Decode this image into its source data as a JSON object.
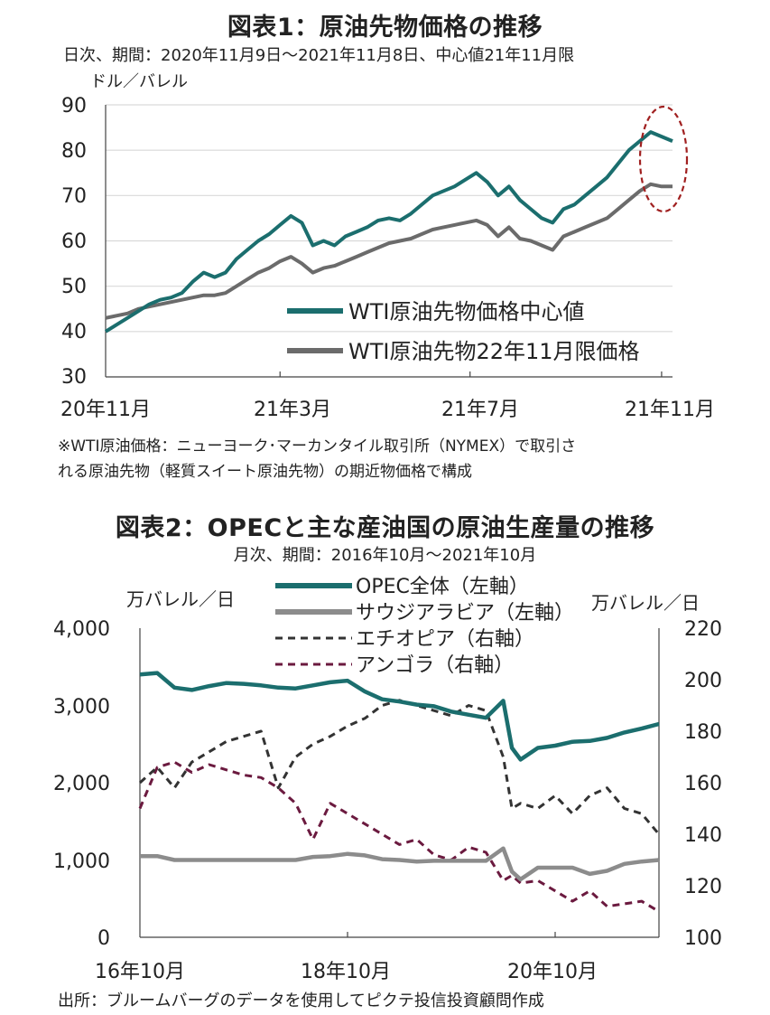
{
  "colors": {
    "teal": "#1b6e6e",
    "gray": "#6b6b6b",
    "lightgray": "#8c8c8c",
    "black": "#333333",
    "maroon": "#6b1a3f",
    "ellipse": "#a02020",
    "grid": "#d9d9d9"
  },
  "charts": [
    {
      "title": "図表1：原油先物価格の推移",
      "subtitle": "日次、期間：2020年11月9日～2021年11月8日、中心値21年11月限",
      "unit": "ドル／バレル",
      "note1": "※WTI原油価格：ニューヨーク･マーカンタイル取引所（NYMEX）で取引さ",
      "note2": "れる原油先物（軽質スイート原油先物）の期近物価格で構成",
      "y_ticks": [
        "90",
        "80",
        "70",
        "60",
        "50",
        "40",
        "30"
      ],
      "x_ticks": [
        "20年11月",
        "21年3月",
        "21年7月",
        "21年11月"
      ]
    },
    {
      "title": "図表2：OPECと主な産油国の原油生産量の推移",
      "subtitle": "月次、期間：2016年10月～2021年10月",
      "unit_left": "万バレル／日",
      "unit_right": "万バレル／日",
      "source": "出所：ブルームバーグのデータを使用してピクテ投信投資顧問作成",
      "y_left_ticks": [
        "4,000",
        "3,000",
        "2,000",
        "1,000",
        "0"
      ],
      "y_right_ticks": [
        "220",
        "200",
        "180",
        "160",
        "140",
        "120",
        "100"
      ],
      "x_ticks": [
        "16年10月",
        "18年10月",
        "20年10月"
      ]
    }
  ],
  "chart_data": [
    {
      "type": "line",
      "title": "図表1：原油先物価格の推移",
      "ylabel": "ドル／バレル",
      "ylim": [
        30,
        90
      ],
      "x_range": [
        "2020-11-09",
        "2021-11-08"
      ],
      "x_ticks": [
        "20年11月",
        "21年3月",
        "21年7月",
        "21年11月"
      ],
      "legend": "bottom-right",
      "grid": true,
      "series": [
        {
          "name": "WTI原油先物価格中心値",
          "dates": [
            "2020-11-09",
            "2020-11-16",
            "2020-11-23",
            "2020-11-30",
            "2020-12-07",
            "2020-12-14",
            "2020-12-21",
            "2020-12-28",
            "2021-01-04",
            "2021-01-11",
            "2021-01-18",
            "2021-01-25",
            "2021-02-01",
            "2021-02-08",
            "2021-02-15",
            "2021-02-22",
            "2021-03-01",
            "2021-03-08",
            "2021-03-15",
            "2021-03-22",
            "2021-03-29",
            "2021-04-05",
            "2021-04-12",
            "2021-04-19",
            "2021-04-26",
            "2021-05-03",
            "2021-05-10",
            "2021-05-17",
            "2021-05-24",
            "2021-05-31",
            "2021-06-07",
            "2021-06-14",
            "2021-06-21",
            "2021-06-28",
            "2021-07-05",
            "2021-07-12",
            "2021-07-19",
            "2021-07-26",
            "2021-08-02",
            "2021-08-09",
            "2021-08-16",
            "2021-08-23",
            "2021-08-30",
            "2021-09-06",
            "2021-09-13",
            "2021-09-20",
            "2021-09-27",
            "2021-10-04",
            "2021-10-11",
            "2021-10-18",
            "2021-10-25",
            "2021-11-01",
            "2021-11-08"
          ],
          "values": [
            40,
            41.5,
            43,
            44.5,
            46,
            47,
            47.5,
            48.5,
            51,
            53,
            52,
            53,
            56,
            58,
            60,
            61.5,
            63.5,
            65.5,
            64,
            59,
            60,
            59,
            61,
            62,
            63,
            64.5,
            65,
            64.5,
            66,
            68,
            70,
            71,
            72,
            73.5,
            75,
            73,
            70,
            72,
            69,
            67,
            65,
            64,
            67,
            68,
            70,
            72,
            74,
            77,
            80,
            82,
            84,
            83,
            82
          ]
        },
        {
          "name": "WTI原油先物22年11月限価格",
          "dates": [
            "2020-11-09",
            "2020-11-16",
            "2020-11-23",
            "2020-11-30",
            "2020-12-07",
            "2020-12-14",
            "2020-12-21",
            "2020-12-28",
            "2021-01-04",
            "2021-01-11",
            "2021-01-18",
            "2021-01-25",
            "2021-02-01",
            "2021-02-08",
            "2021-02-15",
            "2021-02-22",
            "2021-03-01",
            "2021-03-08",
            "2021-03-15",
            "2021-03-22",
            "2021-03-29",
            "2021-04-05",
            "2021-04-12",
            "2021-04-19",
            "2021-04-26",
            "2021-05-03",
            "2021-05-10",
            "2021-05-17",
            "2021-05-24",
            "2021-05-31",
            "2021-06-07",
            "2021-06-14",
            "2021-06-21",
            "2021-06-28",
            "2021-07-05",
            "2021-07-12",
            "2021-07-19",
            "2021-07-26",
            "2021-08-02",
            "2021-08-09",
            "2021-08-16",
            "2021-08-23",
            "2021-08-30",
            "2021-09-06",
            "2021-09-13",
            "2021-09-20",
            "2021-09-27",
            "2021-10-04",
            "2021-10-11",
            "2021-10-18",
            "2021-10-25",
            "2021-11-01",
            "2021-11-08"
          ],
          "values": [
            43,
            43.5,
            44,
            45,
            45.5,
            46,
            46.5,
            47,
            47.5,
            48,
            48,
            48.5,
            50,
            51.5,
            53,
            54,
            55.5,
            56.5,
            55,
            53,
            54,
            54.5,
            55.5,
            56.5,
            57.5,
            58.5,
            59.5,
            60,
            60.5,
            61.5,
            62.5,
            63,
            63.5,
            64,
            64.5,
            63.5,
            61,
            63,
            60.5,
            60,
            59,
            58,
            61,
            62,
            63,
            64,
            65,
            67,
            69,
            71,
            72.5,
            72,
            72
          ]
        }
      ]
    },
    {
      "type": "line",
      "title": "図表2：OPECと主な産油国の原油生産量の推移",
      "ylabel": "万バレル／日",
      "y2label": "万バレル／日",
      "ylim": [
        0,
        4000
      ],
      "y2lim": [
        100,
        220
      ],
      "x_range": [
        "2016-10",
        "2021-10"
      ],
      "x_ticks": [
        "16年10月",
        "18年10月",
        "20年10月"
      ],
      "legend": "top-center",
      "grid": false,
      "series": [
        {
          "name": "OPEC全体（左軸）",
          "axis": "left",
          "dates": [
            "2016-10",
            "2016-12",
            "2017-02",
            "2017-04",
            "2017-06",
            "2017-08",
            "2017-10",
            "2017-12",
            "2018-02",
            "2018-04",
            "2018-06",
            "2018-08",
            "2018-10",
            "2018-12",
            "2019-02",
            "2019-04",
            "2019-06",
            "2019-08",
            "2019-10",
            "2019-12",
            "2020-02",
            "2020-04",
            "2020-05",
            "2020-06",
            "2020-08",
            "2020-10",
            "2020-12",
            "2021-02",
            "2021-04",
            "2021-06",
            "2021-08",
            "2021-10"
          ],
          "values": [
            3400,
            3420,
            3230,
            3200,
            3250,
            3290,
            3280,
            3260,
            3230,
            3220,
            3260,
            3300,
            3320,
            3180,
            3080,
            3050,
            3010,
            2990,
            2920,
            2880,
            2840,
            3060,
            2450,
            2300,
            2450,
            2480,
            2530,
            2540,
            2580,
            2650,
            2700,
            2760
          ]
        },
        {
          "name": "サウジアラビア（左軸）",
          "axis": "left",
          "dates": [
            "2016-10",
            "2016-12",
            "2017-02",
            "2017-04",
            "2017-06",
            "2017-08",
            "2017-10",
            "2017-12",
            "2018-02",
            "2018-04",
            "2018-06",
            "2018-08",
            "2018-10",
            "2018-12",
            "2019-02",
            "2019-04",
            "2019-06",
            "2019-08",
            "2019-10",
            "2019-12",
            "2020-02",
            "2020-04",
            "2020-05",
            "2020-06",
            "2020-08",
            "2020-10",
            "2020-12",
            "2021-02",
            "2021-04",
            "2021-06",
            "2021-08",
            "2021-10"
          ],
          "values": [
            1050,
            1050,
            1000,
            1000,
            1000,
            1000,
            1000,
            1000,
            1000,
            1000,
            1040,
            1050,
            1080,
            1060,
            1010,
            1000,
            980,
            990,
            990,
            990,
            990,
            1150,
            850,
            750,
            900,
            900,
            900,
            820,
            860,
            950,
            980,
            1000
          ]
        },
        {
          "name": "エチオピア（右軸）",
          "axis": "right",
          "dates": [
            "2016-10",
            "2016-12",
            "2017-02",
            "2017-04",
            "2017-06",
            "2017-08",
            "2017-10",
            "2017-12",
            "2018-02",
            "2018-04",
            "2018-06",
            "2018-08",
            "2018-10",
            "2018-12",
            "2019-02",
            "2019-04",
            "2019-06",
            "2019-08",
            "2019-10",
            "2019-12",
            "2020-02",
            "2020-04",
            "2020-05",
            "2020-06",
            "2020-08",
            "2020-10",
            "2020-12",
            "2021-02",
            "2021-04",
            "2021-06",
            "2021-08",
            "2021-10"
          ],
          "values": [
            160,
            166,
            158,
            168,
            172,
            176,
            178,
            180,
            158,
            170,
            175,
            178,
            182,
            185,
            190,
            192,
            190,
            188,
            186,
            190,
            188,
            170,
            150,
            152,
            150,
            155,
            148,
            155,
            158,
            150,
            148,
            140
          ]
        },
        {
          "name": "アンゴラ（右軸）",
          "axis": "right",
          "dates": [
            "2016-10",
            "2016-12",
            "2017-02",
            "2017-04",
            "2017-06",
            "2017-08",
            "2017-10",
            "2017-12",
            "2018-02",
            "2018-04",
            "2018-06",
            "2018-08",
            "2018-10",
            "2018-12",
            "2019-02",
            "2019-04",
            "2019-06",
            "2019-08",
            "2019-10",
            "2019-12",
            "2020-02",
            "2020-04",
            "2020-05",
            "2020-06",
            "2020-08",
            "2020-10",
            "2020-12",
            "2021-02",
            "2021-04",
            "2021-06",
            "2021-08",
            "2021-10"
          ],
          "values": [
            150,
            166,
            168,
            164,
            167,
            165,
            163,
            162,
            158,
            152,
            138,
            152,
            148,
            144,
            140,
            136,
            138,
            132,
            130,
            135,
            133,
            122,
            124,
            121,
            122,
            118,
            114,
            118,
            112,
            113,
            114,
            110
          ]
        }
      ]
    }
  ]
}
